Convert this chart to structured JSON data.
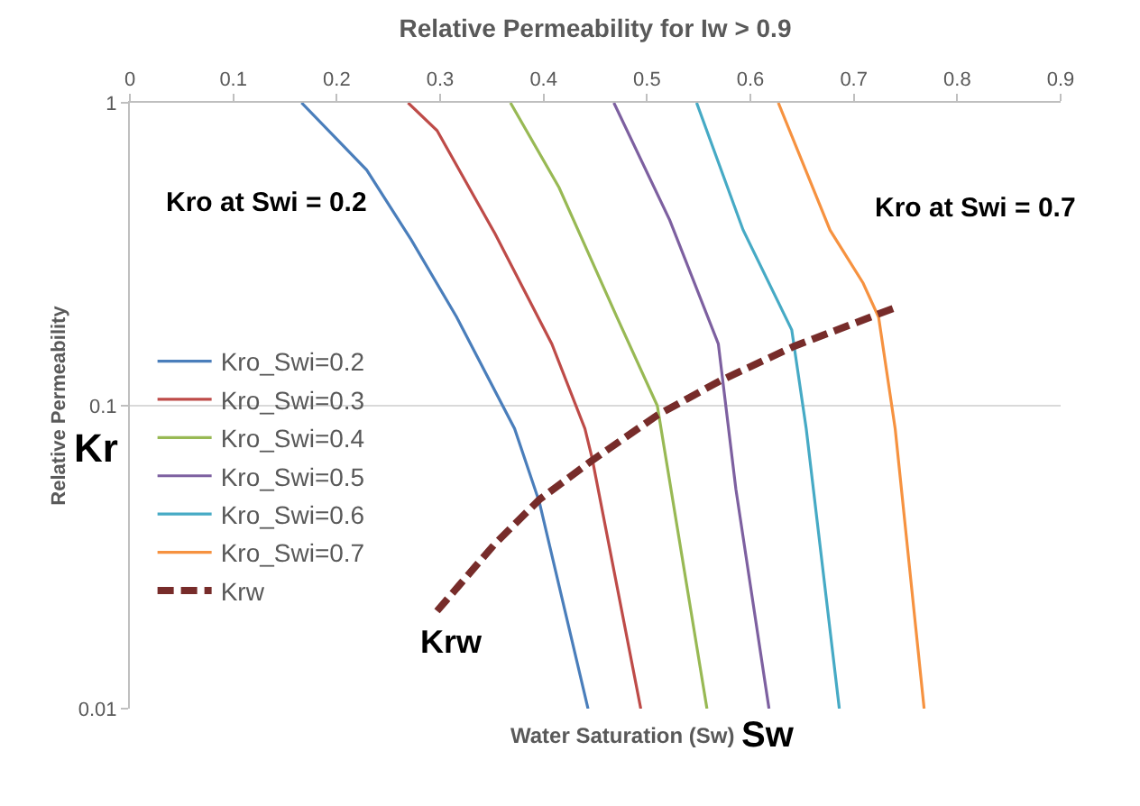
{
  "chart_data": {
    "type": "line",
    "title": "Relative Permeability for Iw > 0.9",
    "xlabel": "Water Saturation (Sw)",
    "ylabel": "Relative Permeability",
    "xlim": [
      0,
      0.9
    ],
    "xticks": [
      0,
      0.1,
      0.2,
      0.3,
      0.4,
      0.5,
      0.6,
      0.7,
      0.8,
      0.9
    ],
    "ylim": [
      0.01,
      1
    ],
    "yticks": [
      0.01,
      0.1,
      1
    ],
    "log": "y",
    "grid": "y",
    "legend": "left",
    "line_style": "solid",
    "marker": "none",
    "annotations": [
      "Kro at Swi = 0.2",
      "Kro at Swi = 0.7",
      "Kr",
      "Krw",
      "Sw"
    ],
    "series": [
      {
        "name": "Kro_Swi=0.2",
        "color": "#4a7ebb",
        "x": [
          0.166,
          0.229,
          0.272,
          0.316,
          0.372,
          0.396,
          0.443
        ],
        "values": [
          1,
          0.6,
          0.353,
          0.196,
          0.084,
          0.048,
          0.01
        ]
      },
      {
        "name": "Kro_Swi=0.3",
        "color": "#be4b48",
        "x": [
          0.269,
          0.297,
          0.353,
          0.408,
          0.44,
          0.447,
          0.494
        ],
        "values": [
          1,
          0.81,
          0.37,
          0.16,
          0.084,
          0.067,
          0.01
        ]
      },
      {
        "name": "Kro_Swi=0.4",
        "color": "#98b954",
        "x": [
          0.368,
          0.415,
          0.471,
          0.51,
          0.558
        ],
        "values": [
          1,
          0.525,
          0.196,
          0.1,
          0.01
        ]
      },
      {
        "name": "Kro_Swi=0.5",
        "color": "#7d60a0",
        "x": [
          0.468,
          0.522,
          0.569,
          0.586,
          0.618
        ],
        "values": [
          1,
          0.41,
          0.16,
          0.053,
          0.01
        ]
      },
      {
        "name": "Kro_Swi=0.6",
        "color": "#46aac5",
        "x": [
          0.548,
          0.593,
          0.64,
          0.654,
          0.686
        ],
        "values": [
          1,
          0.38,
          0.178,
          0.084,
          0.01
        ]
      },
      {
        "name": "Kro_Swi=0.7",
        "color": "#f69240",
        "x": [
          0.627,
          0.677,
          0.709,
          0.724,
          0.74,
          0.768
        ],
        "values": [
          1,
          0.38,
          0.254,
          0.196,
          0.084,
          0.01
        ]
      },
      {
        "name": "Krw",
        "color": "#772c2a",
        "line_style": "dashed",
        "x": [
          0.297,
          0.353,
          0.396,
          0.447,
          0.51,
          0.571,
          0.642,
          0.742
        ],
        "values": [
          0.021,
          0.035,
          0.049,
          0.066,
          0.093,
          0.121,
          0.157,
          0.212
        ]
      }
    ]
  }
}
